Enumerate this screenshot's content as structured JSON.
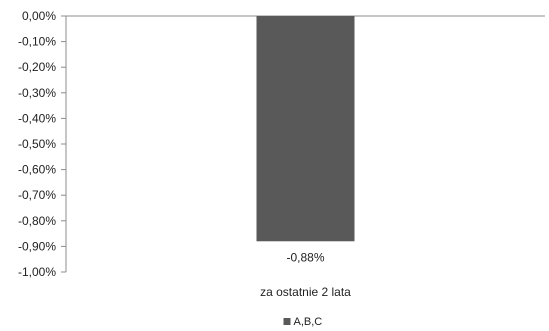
{
  "chart_data": {
    "type": "bar",
    "categories": [
      "za ostatnie 2 lata"
    ],
    "series": [
      {
        "name": "A,B,C",
        "values": [
          -0.88
        ],
        "color": "#595959"
      }
    ],
    "data_labels": [
      "-0,88%"
    ],
    "y_ticks": [
      {
        "value": 0.0,
        "label": "0,00%"
      },
      {
        "value": -0.1,
        "label": "-0,10%"
      },
      {
        "value": -0.2,
        "label": "-0,20%"
      },
      {
        "value": -0.3,
        "label": "-0,30%"
      },
      {
        "value": -0.4,
        "label": "-0,40%"
      },
      {
        "value": -0.5,
        "label": "-0,50%"
      },
      {
        "value": -0.6,
        "label": "-0,60%"
      },
      {
        "value": -0.7,
        "label": "-0,70%"
      },
      {
        "value": -0.8,
        "label": "-0,80%"
      },
      {
        "value": -0.9,
        "label": "-0,90%"
      },
      {
        "value": -1.0,
        "label": "-1,00%"
      }
    ],
    "ylim": [
      -1.0,
      0.0
    ],
    "title": "",
    "xlabel": "",
    "ylabel": "",
    "grid": false,
    "legend_position": "bottom-center",
    "axis_color": "#8c8c8c"
  }
}
